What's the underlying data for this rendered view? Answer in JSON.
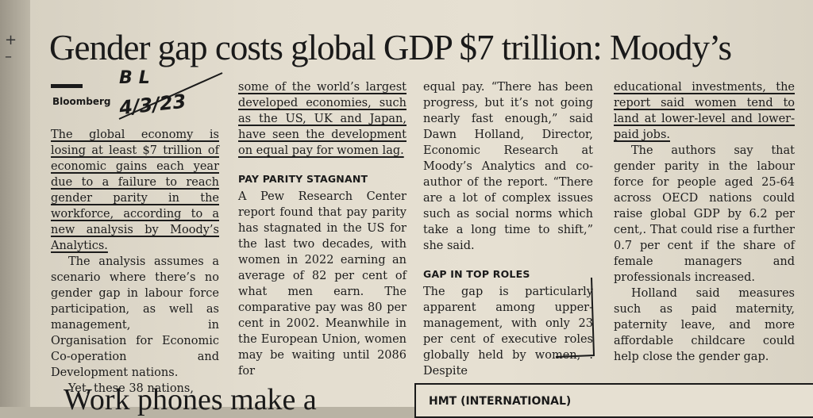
{
  "article": {
    "headline": "Gender gap costs global GDP $7 trillion: Moody’s",
    "byline": "Bloomberg",
    "col1": {
      "p1": "The global economy is losing at least $7 trillion of economic gains each year due to a failure to reach gender parity in the workforce, according to a new analysis by Moody’s Analytics.",
      "p2": "The analysis assumes a scenario where there’s no gender gap in labour force participation, as well as management, in Organisation for Economic Co-operation and Development nations.",
      "p3": "Yet, these 38 nations,"
    },
    "col2": {
      "p1": "some of the world’s largest developed economies, such as the US, UK and Japan, have seen the development on equal pay for women lag.",
      "subhead": "PAY PARITY STAGNANT",
      "p2": "A Pew Research Center report found that pay parity has stagnated in the US for the last two decades, with women in 2022 earning an average of 82 per cent of what men earn. The comparative pay was 80 per cent in 2002. Meanwhile in the European Union, women may be waiting until 2086 for"
    },
    "col3": {
      "p1": "equal pay. “There has been progress, but it’s not going nearly fast enough,” said Dawn Holland, Director, Economic Research at Moody’s Analytics and co-author of the report. “There are a lot of complex issues such as social norms which take a long time to shift,” she said.",
      "subhead": "GAP IN TOP ROLES",
      "p2": "The gap is particularly apparent among upper-management, with only 23 per cent of executive roles globally held by women, . Despite"
    },
    "col4": {
      "p1": "educational investments, the report said women tend to land at lower-level and lower-paid jobs.",
      "p2": "The authors say that gender parity in the labour force for people aged 25-64 across OECD nations could raise global GDP by 6.2 per cent,. That could rise a further 0.7 per cent if the share of female managers and professionals increased.",
      "p3": "Holland said measures such as paid maternity, paternity leave, and more affordable childcare could help close the gender gap."
    }
  },
  "handwriting": {
    "initials": "BL",
    "date": "4/3/23"
  },
  "next_article": {
    "headline": "Work phones make a",
    "box_title": "HMT (INTERNATIONAL)"
  },
  "edge_text": "+ –"
}
